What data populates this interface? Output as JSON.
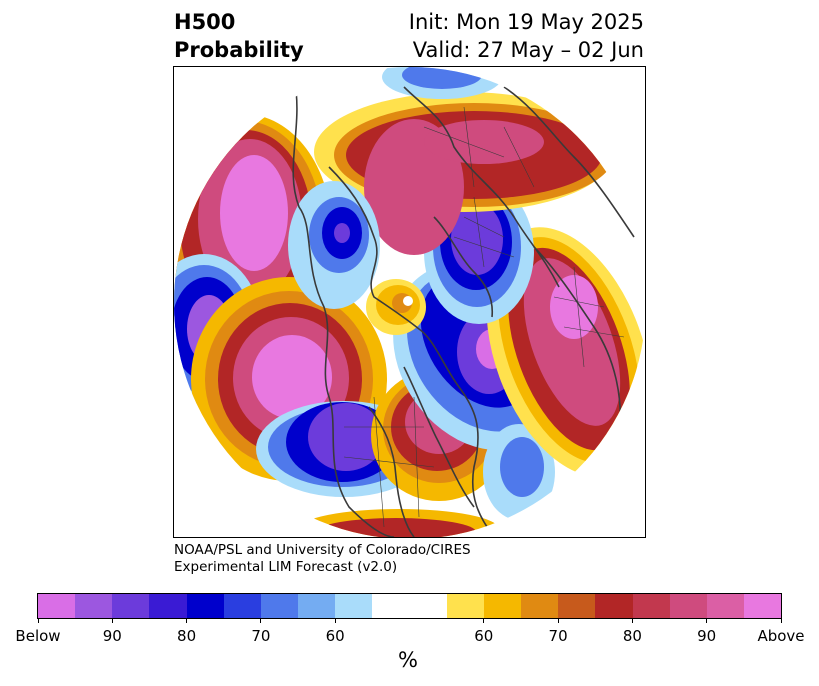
{
  "title": {
    "left_line1": "H500",
    "left_line2": "Probability",
    "right_line1": "Init: Mon 19 May 2025",
    "right_line2": "Valid: 27 May – 02 Jun"
  },
  "credit": {
    "line1": "NOAA/PSL and University of Colorado/CIRES",
    "line2": "Experimental LIM Forecast (v2.0)"
  },
  "map": {
    "projection": "north polar stereographic",
    "coastline_color": "#3a3a3a"
  },
  "colorbar": {
    "unit": "%",
    "colors": [
      "#d96ee6",
      "#9c57e0",
      "#6c3bdb",
      "#3a1bd4",
      "#0000cc",
      "#2a3ee0",
      "#4f79eb",
      "#74acf2",
      "#a9dcfa",
      "#ffffff",
      "#ffffff",
      "#ffe14d",
      "#f5b800",
      "#e08a12",
      "#c75a1c",
      "#b22626",
      "#c2384e",
      "#cf4b7e",
      "#db5fa5",
      "#e878e0"
    ],
    "tick_labels": [
      "Below",
      "90",
      "80",
      "70",
      "60",
      "60",
      "70",
      "80",
      "90",
      "Above"
    ]
  }
}
